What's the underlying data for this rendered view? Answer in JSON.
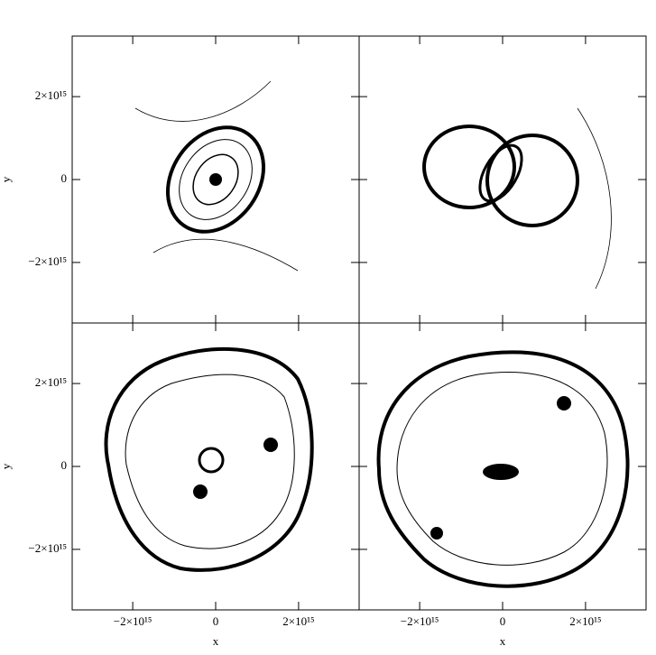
{
  "chart_data": {
    "type": "contour",
    "x_label": "x",
    "y_label": "y",
    "xlim": [
      -3460000000000000.0,
      3460000000000000.0
    ],
    "ylim": [
      -3460000000000000.0,
      3460000000000000.0
    ],
    "xticks": [
      {
        "value": -2000000000000000.0,
        "label": "−2×10¹⁵"
      },
      {
        "value": 0,
        "label": "0"
      },
      {
        "value": 2000000000000000.0,
        "label": "2×10¹⁵"
      }
    ],
    "yticks": [
      {
        "value": -2000000000000000.0,
        "label": "−2×10¹⁵"
      },
      {
        "value": 0,
        "label": "0"
      },
      {
        "value": 2000000000000000.0,
        "label": "2×10¹⁵"
      }
    ],
    "color": "#000000"
  }
}
